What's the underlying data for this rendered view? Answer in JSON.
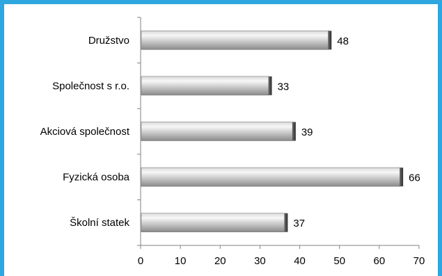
{
  "chart_data": {
    "type": "bar",
    "orientation": "horizontal",
    "title": "",
    "xlabel": "",
    "ylabel": "",
    "categories": [
      "Družstvo",
      "Společnost s r.o.",
      "Akciová společnost",
      "Fyzická osoba",
      "Školní statek"
    ],
    "values": [
      48,
      33,
      39,
      66,
      37
    ],
    "xlim": [
      0,
      70
    ],
    "xticks": [
      "0",
      "10",
      "20",
      "30",
      "40",
      "50",
      "60",
      "70"
    ],
    "grid": false,
    "legend": "none",
    "data_labels": true
  },
  "colors": {
    "frame_border": "#2ea7e0",
    "background": "#ffffff",
    "bar_light": "#f4f4f4",
    "bar_mid": "#c8c8c8",
    "bar_dark": "#5a5a5a",
    "axis": "#808080"
  }
}
